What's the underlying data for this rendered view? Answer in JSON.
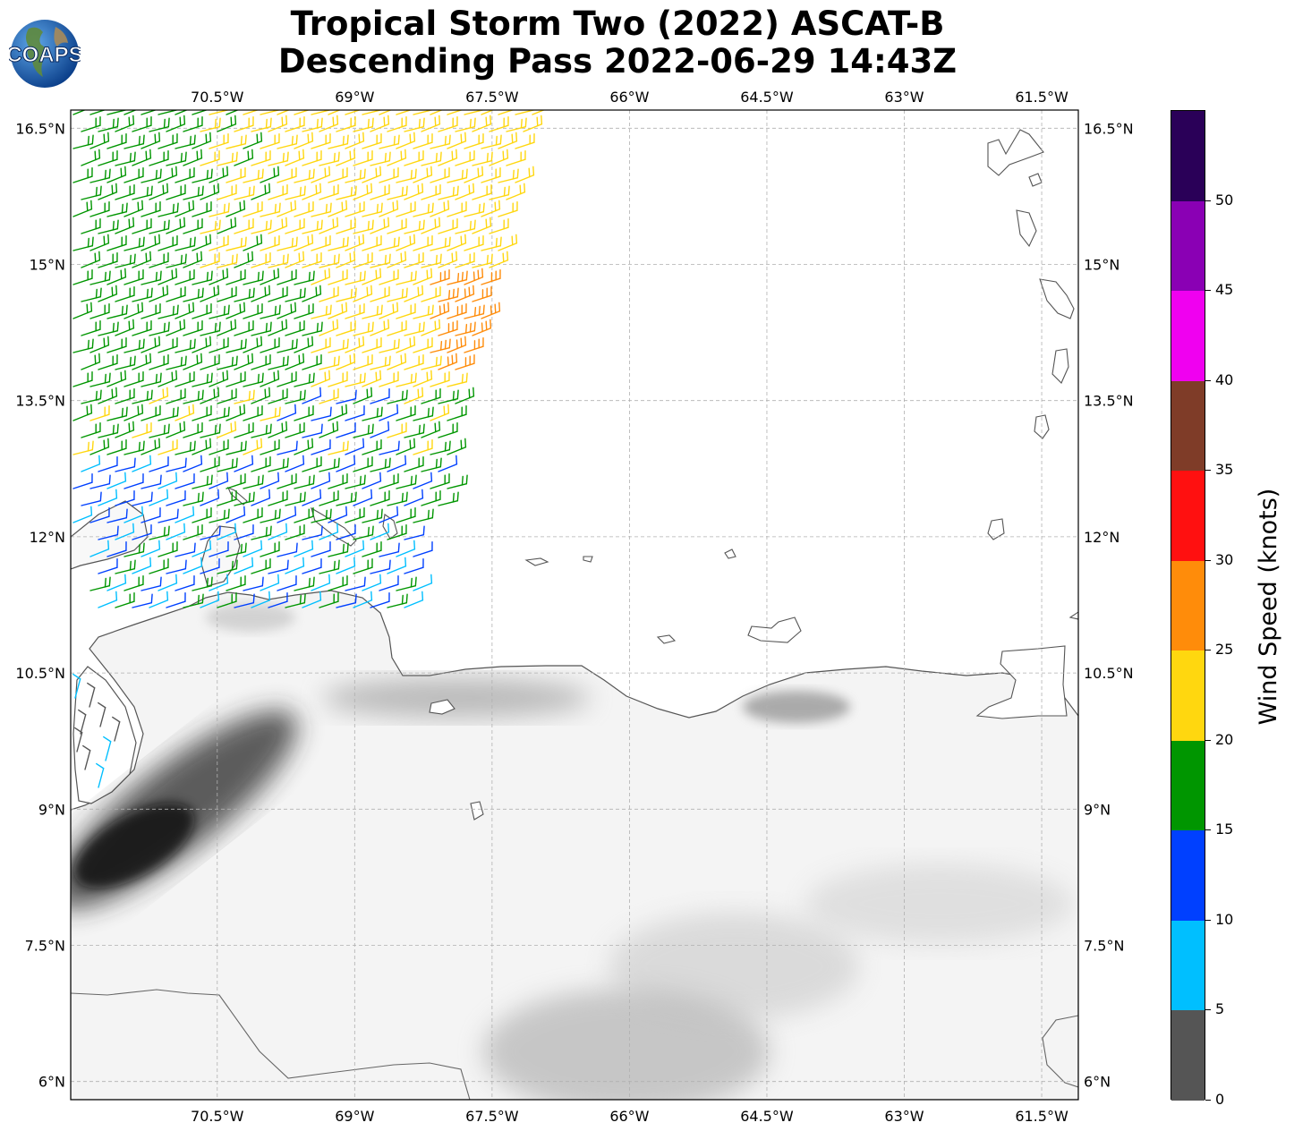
{
  "title_line1": "Tropical Storm Two (2022) ASCAT-B",
  "title_line2": "Descending Pass 2022-06-29 14:43Z",
  "logo": {
    "text": "COAPS",
    "icon": "globe-icon"
  },
  "map": {
    "lon_range": [
      -72.1,
      -61.1
    ],
    "lat_range": [
      5.8,
      16.7
    ],
    "lon_ticks": [
      {
        "value": -70.5,
        "label": "70.5°W"
      },
      {
        "value": -69.0,
        "label": "69°W"
      },
      {
        "value": -67.5,
        "label": "67.5°W"
      },
      {
        "value": -66.0,
        "label": "66°W"
      },
      {
        "value": -64.5,
        "label": "64.5°W"
      },
      {
        "value": -63.0,
        "label": "63°W"
      },
      {
        "value": -61.5,
        "label": "61.5°W"
      }
    ],
    "lat_ticks": [
      {
        "value": 16.5,
        "label": "16.5°N"
      },
      {
        "value": 15.0,
        "label": "15°N"
      },
      {
        "value": 13.5,
        "label": "13.5°N"
      },
      {
        "value": 12.0,
        "label": "12°N"
      },
      {
        "value": 10.5,
        "label": "10.5°N"
      },
      {
        "value": 9.0,
        "label": "9°N"
      },
      {
        "value": 7.5,
        "label": "7.5°N"
      },
      {
        "value": 6.0,
        "label": "6°N"
      }
    ],
    "gridlines": true,
    "background": "grayscale terrain shading over land, white ocean",
    "wind_barbs": "ASCAT-B wind barbs colored by wind speed; swath over the northwest of the map"
  },
  "colorbar": {
    "label": "Wind Speed (knots)",
    "bins": [
      {
        "from": 0,
        "to": 5,
        "color": "#555555"
      },
      {
        "from": 5,
        "to": 10,
        "color": "#00bfff"
      },
      {
        "from": 10,
        "to": 15,
        "color": "#0040ff"
      },
      {
        "from": 15,
        "to": 20,
        "color": "#009600"
      },
      {
        "from": 20,
        "to": 25,
        "color": "#ffd70f"
      },
      {
        "from": 25,
        "to": 30,
        "color": "#ff8c0a"
      },
      {
        "from": 30,
        "to": 35,
        "color": "#ff1010"
      },
      {
        "from": 35,
        "to": 40,
        "color": "#7f3c28"
      },
      {
        "from": 40,
        "to": 45,
        "color": "#f000f0"
      },
      {
        "from": 45,
        "to": 50,
        "color": "#8a00b4"
      },
      {
        "from": 50,
        "to": 55,
        "color": "#2a0058"
      }
    ],
    "ticks": [
      "0",
      "5",
      "10",
      "15",
      "20",
      "25",
      "30",
      "35",
      "40",
      "45",
      "50"
    ]
  }
}
